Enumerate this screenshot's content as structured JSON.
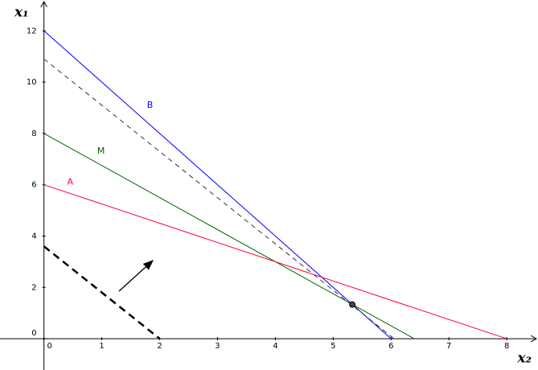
{
  "chart_data": {
    "type": "line",
    "xlabel": "x₂",
    "ylabel": "x₁",
    "xlim": [
      -0.76,
      8.54
    ],
    "ylim": [
      -1.22,
      13.2
    ],
    "xticks": [
      0,
      1,
      2,
      3,
      4,
      5,
      6,
      7,
      8
    ],
    "yticks": [
      0,
      2,
      4,
      6,
      8,
      10,
      12
    ],
    "grid": false,
    "series": [
      {
        "name": "B",
        "color": "#0000ff",
        "x": [
          0,
          6
        ],
        "values": [
          12,
          0
        ]
      },
      {
        "name": "M",
        "color": "#006400",
        "x": [
          0,
          6.4
        ],
        "values": [
          8,
          0
        ]
      },
      {
        "name": "A",
        "color": "#ff0033",
        "x": [
          0,
          8
        ],
        "values": [
          6,
          0
        ]
      },
      {
        "color": "#333333",
        "dash": "6,5",
        "x": [
          0,
          6.05
        ],
        "values": [
          10.9,
          0
        ]
      },
      {
        "color": "#000000",
        "dash": "9,6",
        "width": 2.5,
        "x": [
          0,
          2
        ],
        "values": [
          3.6,
          0
        ]
      }
    ],
    "point": {
      "x": 5.33,
      "y": 1.33,
      "color": "#444444"
    }
  }
}
